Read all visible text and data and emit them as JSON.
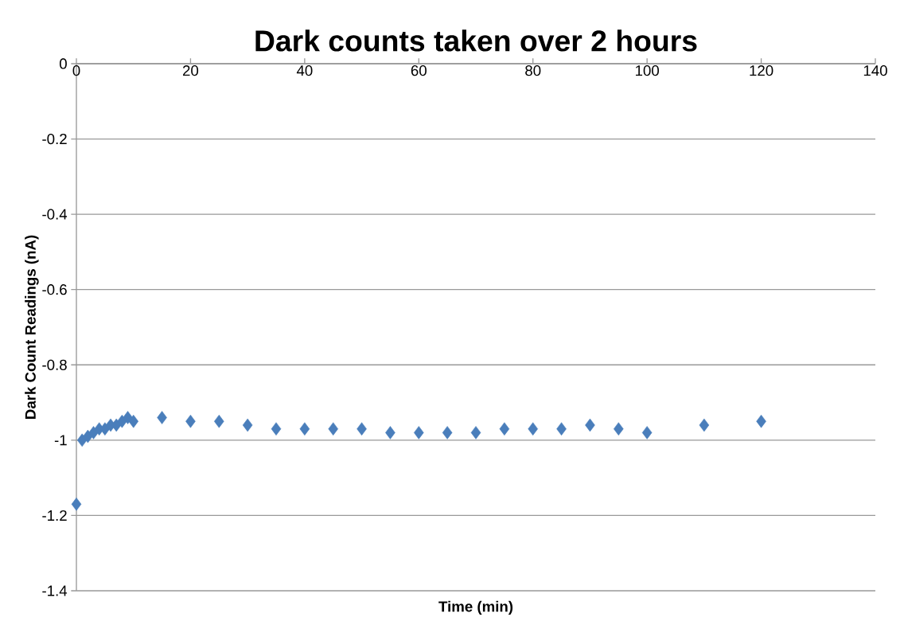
{
  "chart_data": {
    "type": "scatter",
    "title": "Dark counts taken over 2 hours",
    "xlabel": "Time (min)",
    "ylabel": "Dark Count Readings (nA)",
    "x": [
      0,
      1,
      2,
      3,
      4,
      5,
      6,
      7,
      8,
      9,
      10,
      15,
      20,
      25,
      30,
      35,
      40,
      45,
      50,
      55,
      60,
      65,
      70,
      75,
      80,
      85,
      90,
      95,
      100,
      110,
      120
    ],
    "values": [
      -1.17,
      -1.0,
      -0.99,
      -0.98,
      -0.97,
      -0.97,
      -0.96,
      -0.96,
      -0.95,
      -0.94,
      -0.95,
      -0.94,
      -0.95,
      -0.95,
      -0.96,
      -0.97,
      -0.97,
      -0.97,
      -0.97,
      -0.98,
      -0.98,
      -0.98,
      -0.98,
      -0.97,
      -0.97,
      -0.97,
      -0.96,
      -0.97,
      -0.98,
      -0.96,
      -0.95
    ],
    "color": "#4a7ebb",
    "marker": "diamond",
    "grid": "y",
    "xlim": [
      0,
      140
    ],
    "ylim": [
      -1.4,
      0
    ],
    "xticks": [
      0,
      20,
      40,
      60,
      80,
      100,
      120,
      140
    ],
    "yticks": [
      -1.4,
      -1.2,
      -1,
      -0.8,
      -0.6,
      -0.4,
      -0.2,
      0
    ]
  }
}
